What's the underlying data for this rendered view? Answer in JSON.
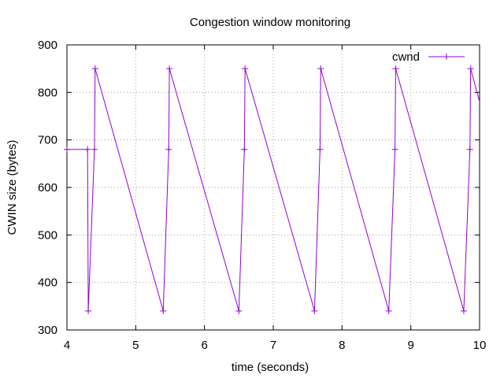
{
  "chart_data": {
    "type": "line",
    "title": "Congestion window monitoring",
    "xlabel": "time (seconds)",
    "ylabel": "CWIN size (bytes)",
    "xlim": [
      4,
      10
    ],
    "ylim": [
      300,
      900
    ],
    "xticks": [
      4,
      5,
      6,
      7,
      8,
      9,
      10
    ],
    "yticks": [
      300,
      400,
      500,
      600,
      700,
      800,
      900
    ],
    "grid": true,
    "legend_position": "top-right",
    "series": [
      {
        "name": "cwnd",
        "color": "#9400d3",
        "marker": "plus",
        "points": [
          [
            4.0,
            680
          ],
          [
            4.3,
            680
          ],
          [
            4.31,
            340
          ],
          [
            4.4,
            680
          ],
          [
            4.41,
            850
          ],
          [
            5.4,
            340
          ],
          [
            5.48,
            680
          ],
          [
            5.49,
            850
          ],
          [
            6.5,
            340
          ],
          [
            6.58,
            680
          ],
          [
            6.59,
            850
          ],
          [
            7.6,
            340
          ],
          [
            7.68,
            680
          ],
          [
            7.69,
            850
          ],
          [
            8.68,
            340
          ],
          [
            8.77,
            680
          ],
          [
            8.78,
            850
          ],
          [
            9.77,
            340
          ],
          [
            9.86,
            680
          ],
          [
            9.87,
            850
          ],
          [
            10.0,
            780
          ]
        ]
      }
    ]
  }
}
